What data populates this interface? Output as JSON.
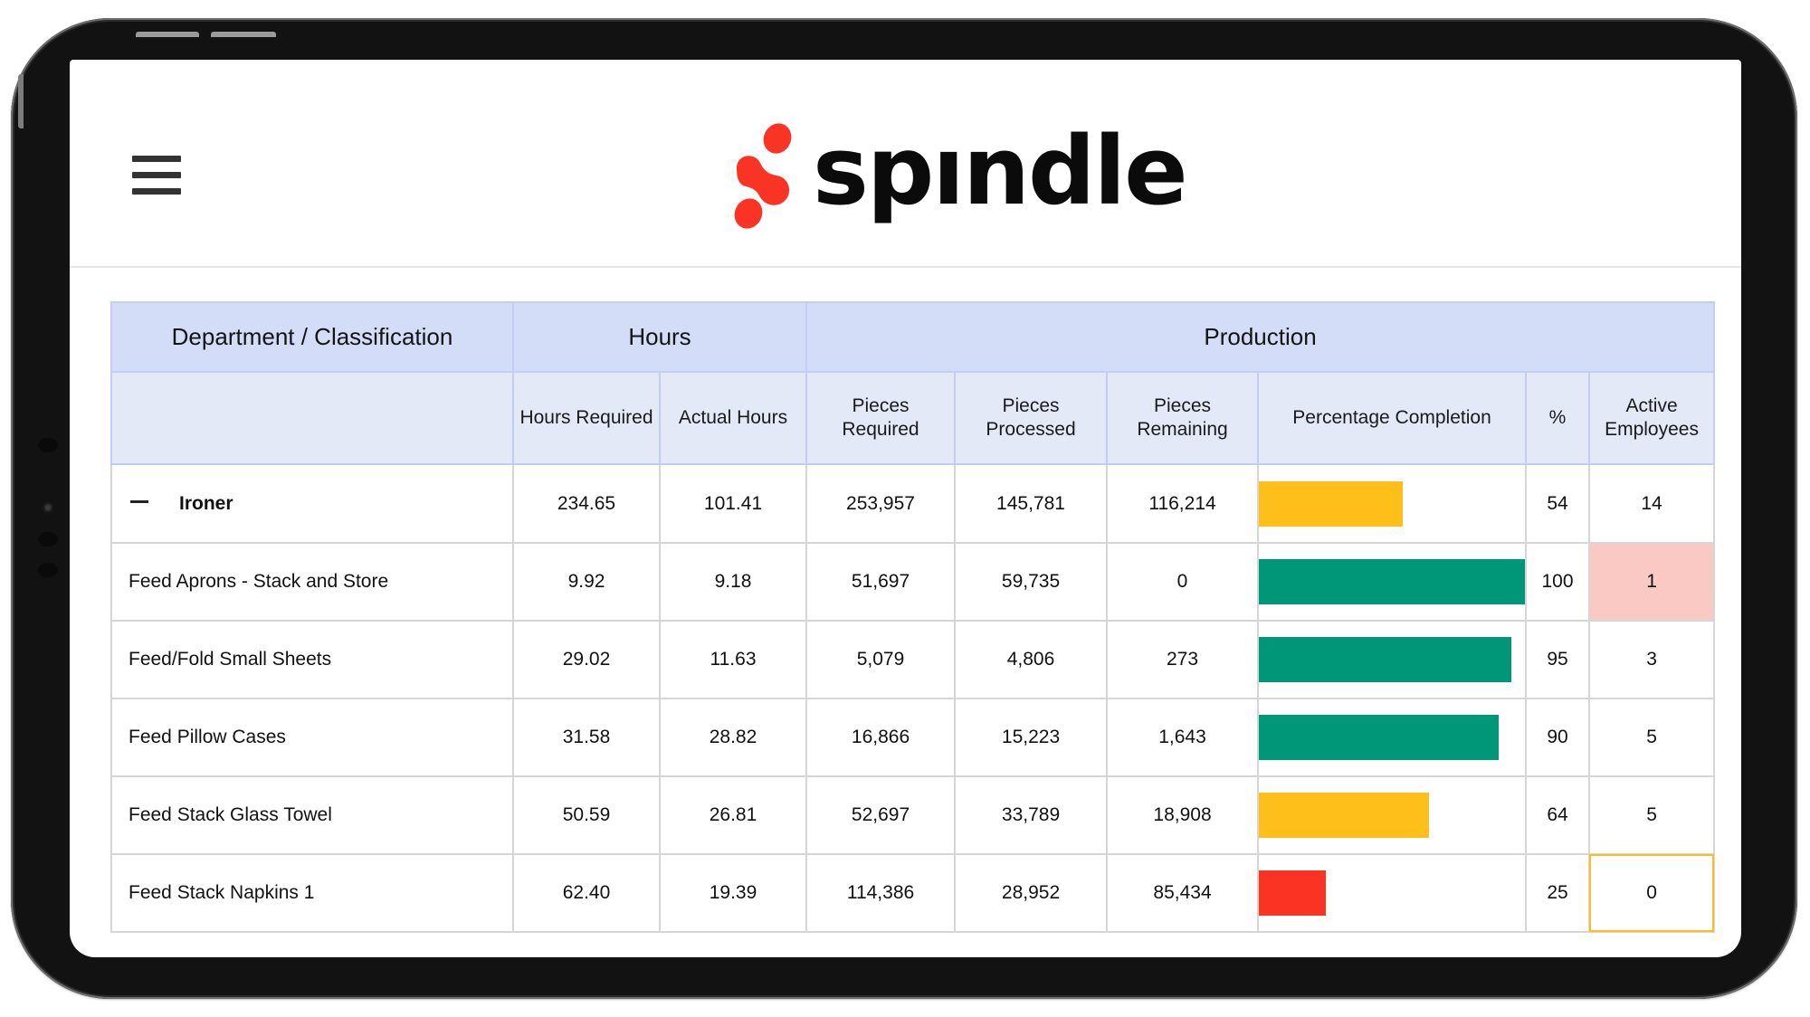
{
  "app": {
    "name": "spındle",
    "menu_icon": "hamburger-menu-icon",
    "logo_icon": "spindle-logo-mark-icon",
    "brand_color": "#f93424"
  },
  "table": {
    "group_headers": {
      "department": "Department / Classification",
      "hours": "Hours",
      "production": "Production"
    },
    "columns": {
      "hours_required": "Hours Required",
      "actual_hours": "Actual Hours",
      "pieces_required": "Pieces Required",
      "pieces_processed": "Pieces Processed",
      "pieces_remaining": "Pieces Remaining",
      "percentage_completion": "Percentage Completion",
      "percent": "%",
      "active_employees": "Active Employees"
    },
    "status_colors": {
      "high": "#009678",
      "medium": "#ffbf1a",
      "low": "#fb3322",
      "alert_fill": "#fbc9c4",
      "alert_border": "#fbbf24"
    },
    "rows": [
      {
        "name": "Ironer",
        "type": "department",
        "collapse_icon": "minus-icon",
        "hours_required": "234.65",
        "actual_hours": "101.41",
        "pieces_required": "253,957",
        "pieces_processed": "145,781",
        "pieces_remaining": "116,214",
        "percent": "54",
        "completion": 54,
        "status": "medium",
        "active_employees": "14",
        "highlight": ""
      },
      {
        "name": "Feed Aprons - Stack and Store",
        "type": "classification",
        "hours_required": "9.92",
        "actual_hours": "9.18",
        "pieces_required": "51,697",
        "pieces_processed": "59,735",
        "pieces_remaining": "0",
        "percent": "100",
        "completion": 100,
        "status": "high",
        "active_employees": "1",
        "highlight": "pink"
      },
      {
        "name": "Feed/Fold Small Sheets",
        "type": "classification",
        "hours_required": "29.02",
        "actual_hours": "11.63",
        "pieces_required": "5,079",
        "pieces_processed": "4,806",
        "pieces_remaining": "273",
        "percent": "95",
        "completion": 95,
        "status": "high",
        "active_employees": "3",
        "highlight": ""
      },
      {
        "name": "Feed Pillow Cases",
        "type": "classification",
        "hours_required": "31.58",
        "actual_hours": "28.82",
        "pieces_required": "16,866",
        "pieces_processed": "15,223",
        "pieces_remaining": "1,643",
        "percent": "90",
        "completion": 90,
        "status": "high",
        "active_employees": "5",
        "highlight": ""
      },
      {
        "name": "Feed Stack Glass Towel",
        "type": "classification",
        "hours_required": "50.59",
        "actual_hours": "26.81",
        "pieces_required": "52,697",
        "pieces_processed": "33,789",
        "pieces_remaining": "18,908",
        "percent": "64",
        "completion": 64,
        "status": "medium",
        "active_employees": "5",
        "highlight": ""
      },
      {
        "name": "Feed Stack Napkins 1",
        "type": "classification",
        "hours_required": "62.40",
        "actual_hours": "19.39",
        "pieces_required": "114,386",
        "pieces_processed": "28,952",
        "pieces_remaining": "85,434",
        "percent": "25",
        "completion": 25,
        "status": "low",
        "active_employees": "0",
        "highlight": "amber"
      }
    ]
  }
}
